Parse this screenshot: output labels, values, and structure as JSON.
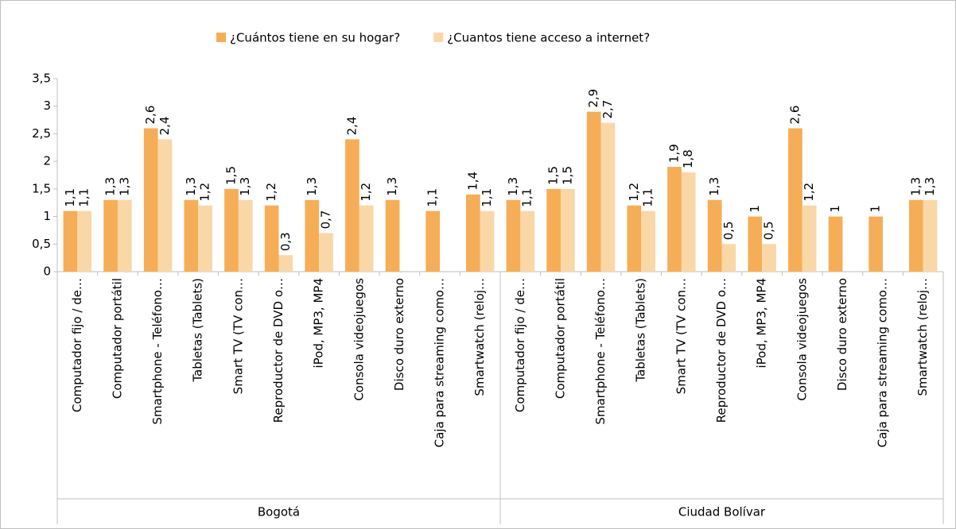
{
  "chart_data": {
    "type": "bar",
    "legend_position": "top",
    "categories": [
      "Computador fijo / de…",
      "Computador portátil",
      "Smartphone - Teléfono…",
      "Tabletas (Tablets)",
      "Smart TV (TV con…",
      "Reproductor de DVD o…",
      "iPod, MP3, MP4",
      "Consola videojuegos",
      "Disco duro externo",
      "Caja para streaming como…",
      "Smartwatch (reloj…",
      "Computador fijo / de…",
      "Computador portátil",
      "Smartphone - Teléfono…",
      "Tabletas (Tablets)",
      "Smart TV (TV con…",
      "Reproductor de DVD o…",
      "iPod, MP3, MP4",
      "Consola videojuegos",
      "Disco duro externo",
      "Caja para streaming como…",
      "Smartwatch (reloj…"
    ],
    "groups": [
      "Bogotá",
      "Ciudad Bolívar"
    ],
    "series": [
      {
        "name": "¿Cuántos tiene en su hogar?",
        "color": "#f5ae57",
        "values": [
          1.1,
          1.3,
          2.6,
          1.3,
          1.5,
          1.2,
          1.3,
          2.4,
          1.3,
          1.1,
          1.4,
          1.3,
          1.5,
          2.9,
          1.2,
          1.9,
          1.3,
          1,
          2.6,
          1,
          1,
          1.3
        ],
        "value_labels": [
          "1,1",
          "1,3",
          "2,6",
          "1,3",
          "1,5",
          "1,2",
          "1,3",
          "2,4",
          "1,3",
          "1,1",
          "1,4",
          "1,3",
          "1,5",
          "2,9",
          "1,2",
          "1,9",
          "1,3",
          "1",
          "2,6",
          "1",
          "1",
          "1,3"
        ]
      },
      {
        "name": "¿Cuantos tiene acceso a internet?",
        "color": "#fad7a6",
        "values": [
          1.1,
          1.3,
          2.4,
          1.2,
          1.3,
          0.3,
          0.7,
          1.2,
          null,
          null,
          1.1,
          1.1,
          1.5,
          2.7,
          1.1,
          1.8,
          0.5,
          0.5,
          1.2,
          null,
          null,
          1.3
        ],
        "value_labels": [
          "1,1",
          "1,3",
          "2,4",
          "1,2",
          "1,3",
          "0,3",
          "0,7",
          "1,2",
          null,
          null,
          "1,1",
          "1,1",
          "1,5",
          "2,7",
          "1,1",
          "1,8",
          "0,5",
          "0,5",
          "1,2",
          null,
          null,
          "1,3"
        ]
      }
    ],
    "ylim": [
      0,
      3.5
    ],
    "yticks": [
      0,
      {
        "value": 0.5,
        "label": "0,5"
      },
      1,
      {
        "value": 1.5,
        "label": "1,5"
      },
      2,
      {
        "value": 2.5,
        "label": "2,5"
      },
      3,
      {
        "value": 3.5,
        "label": "3,5"
      }
    ],
    "grid": false
  }
}
